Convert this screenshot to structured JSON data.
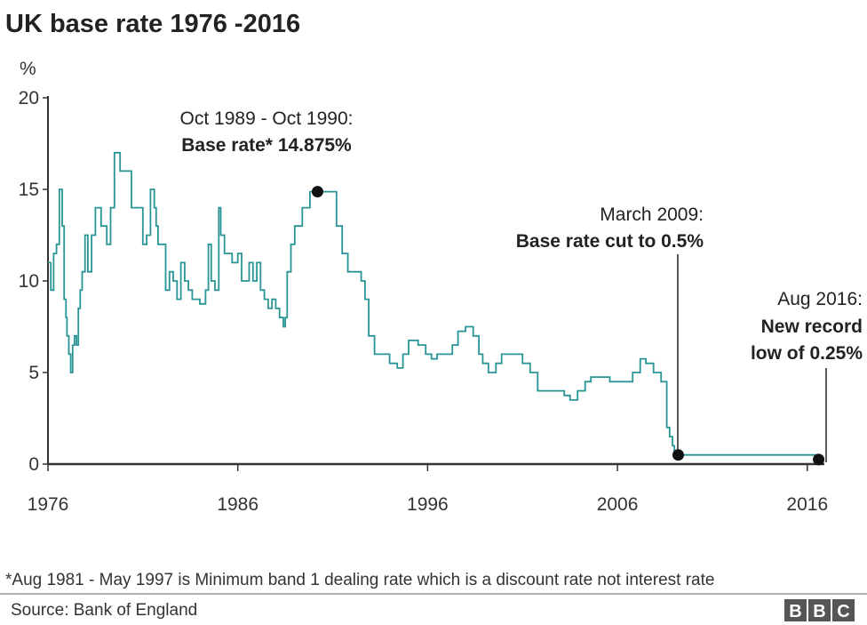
{
  "chart_data": {
    "type": "line",
    "title": "UK base rate 1976 -2016",
    "ylabel": "%",
    "xlabel": "",
    "xlim": [
      1976,
      2016.9
    ],
    "ylim": [
      0,
      20
    ],
    "x_ticks": [
      "1976",
      "1986",
      "1996",
      "2006",
      "2016"
    ],
    "y_ticks": [
      "0",
      "5",
      "10",
      "15",
      "20"
    ],
    "grid": false,
    "line_color": "#2a9596",
    "series": [
      {
        "x": [
          1976.0,
          1976.15,
          1976.3,
          1976.45,
          1976.6,
          1976.75,
          1976.85,
          1976.95,
          1977.0,
          1977.1,
          1977.2,
          1977.3,
          1977.4,
          1977.5,
          1977.6,
          1977.7,
          1977.8,
          1977.95,
          1978.1,
          1978.3,
          1978.5,
          1978.8,
          1979.1,
          1979.3,
          1979.5,
          1979.8,
          1980.4,
          1980.7,
          1981.0,
          1981.2,
          1981.4,
          1981.6,
          1981.7,
          1981.8,
          1982.0,
          1982.2,
          1982.4,
          1982.6,
          1982.8,
          1983.0,
          1983.2,
          1983.4,
          1983.6,
          1983.8,
          1984.0,
          1984.3,
          1984.45,
          1984.6,
          1984.8,
          1985.0,
          1985.1,
          1985.3,
          1985.5,
          1985.7,
          1986.0,
          1986.2,
          1986.4,
          1986.6,
          1986.8,
          1987.0,
          1987.2,
          1987.4,
          1987.6,
          1987.8,
          1988.0,
          1988.2,
          1988.4,
          1988.5,
          1988.6,
          1988.8,
          1989.0,
          1989.4,
          1989.8,
          1990.8,
          1991.2,
          1991.5,
          1991.8,
          1992.1,
          1992.5,
          1992.7,
          1992.9,
          1993.2,
          1994.0,
          1994.4,
          1994.7,
          1995.0,
          1995.5,
          1995.9,
          1996.2,
          1996.5,
          1996.8,
          1997.3,
          1997.6,
          1998.0,
          1998.4,
          1998.7,
          1998.9,
          1999.2,
          1999.6,
          1999.9,
          2000.2,
          2001.0,
          2001.4,
          2001.8,
          2002.5,
          2003.2,
          2003.5,
          2003.9,
          2004.3,
          2004.6,
          2005.6,
          2006.5,
          2006.8,
          2007.2,
          2007.5,
          2007.9,
          2008.3,
          2008.6,
          2008.75,
          2008.9,
          2009.0,
          2009.2,
          2016.5,
          2016.6,
          2016.9
        ],
        "y": [
          11.0,
          9.5,
          11.5,
          12.0,
          15.0,
          13.0,
          9.0,
          8.0,
          7.0,
          6.0,
          5.0,
          6.5,
          7.0,
          6.5,
          8.5,
          9.5,
          10.5,
          12.5,
          10.5,
          12.5,
          14.0,
          13.0,
          12.0,
          14.0,
          17.0,
          16.0,
          14.0,
          14.0,
          12.0,
          12.5,
          15.0,
          14.0,
          13.0,
          12.0,
          12.0,
          9.5,
          10.5,
          10.0,
          9.0,
          11.0,
          10.0,
          9.5,
          9.0,
          9.0,
          8.75,
          9.5,
          12.0,
          10.0,
          9.5,
          14.0,
          12.5,
          11.5,
          11.5,
          11.0,
          11.5,
          10.0,
          10.0,
          11.0,
          10.0,
          11.0,
          9.5,
          9.0,
          8.5,
          9.0,
          8.5,
          8.0,
          7.5,
          8.0,
          10.5,
          12.0,
          13.0,
          14.0,
          14.875,
          14.875,
          13.0,
          11.5,
          10.5,
          10.5,
          10.0,
          9.0,
          7.0,
          6.0,
          5.5,
          5.25,
          6.0,
          6.75,
          6.5,
          6.0,
          5.75,
          6.0,
          6.0,
          6.5,
          7.25,
          7.5,
          7.0,
          6.0,
          5.5,
          5.0,
          5.5,
          6.0,
          6.0,
          5.5,
          5.0,
          4.0,
          4.0,
          3.75,
          3.5,
          4.0,
          4.5,
          4.75,
          4.5,
          4.5,
          5.0,
          5.75,
          5.5,
          5.0,
          4.5,
          2.0,
          1.5,
          1.0,
          0.5,
          0.5,
          0.5,
          0.25,
          0.25
        ]
      }
    ],
    "markers": [
      {
        "x": 1990.2,
        "y": 14.875
      },
      {
        "x": 2009.2,
        "y": 0.5
      },
      {
        "x": 2016.6,
        "y": 0.25
      }
    ],
    "annotations": [
      {
        "line1": "Oct 1989 - Oct 1990:",
        "line2": "Base rate* 14.875%"
      },
      {
        "line1": "March 2009:",
        "line2": "Base rate cut to 0.5%"
      },
      {
        "line1": "Aug 2016:",
        "line2": "New record",
        "line3": "low of 0.25%"
      }
    ],
    "footnote": "*Aug 1981 - May 1997 is Minimum band 1 dealing rate which is a discount rate not interest rate",
    "source": "Source: Bank of England"
  },
  "logo": {
    "letters": [
      "B",
      "B",
      "C"
    ]
  }
}
